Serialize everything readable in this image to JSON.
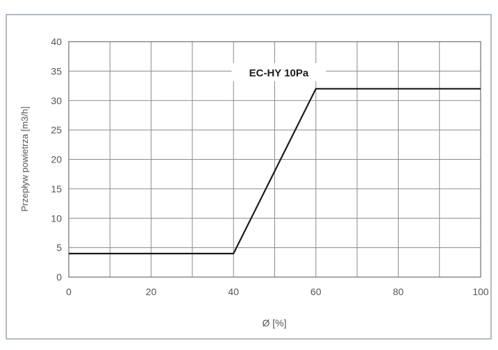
{
  "chart_data": {
    "type": "line",
    "title": "",
    "xlabel": "Ø [%]",
    "ylabel": "Przepływ powietrza [m3/h]",
    "xlim": [
      0,
      100
    ],
    "ylim": [
      0,
      40
    ],
    "x_ticks": [
      0,
      20,
      40,
      60,
      80,
      100
    ],
    "x_tick_labels": [
      "0",
      "20",
      "40",
      "60",
      "80",
      "100"
    ],
    "x_grid": [
      0,
      10,
      20,
      30,
      40,
      50,
      60,
      70,
      80,
      90,
      100
    ],
    "y_ticks": [
      0,
      5,
      10,
      15,
      20,
      25,
      30,
      35,
      40
    ],
    "y_tick_labels": [
      "0",
      "5",
      "10",
      "15",
      "20",
      "25",
      "30",
      "35",
      "40"
    ],
    "grid": true,
    "series": [
      {
        "name": "EC-HY 10Pa",
        "x": [
          0,
          40,
          60,
          100
        ],
        "y": [
          4,
          4,
          32,
          32
        ]
      }
    ],
    "annotations": [
      {
        "text": "EC-HY 10Pa",
        "x": 51,
        "y": 34.7
      }
    ],
    "colors": {
      "line": "#1a1a1a",
      "grid": "#8a8a8a",
      "frame": "#9aa4b4",
      "text": "#555555"
    }
  }
}
